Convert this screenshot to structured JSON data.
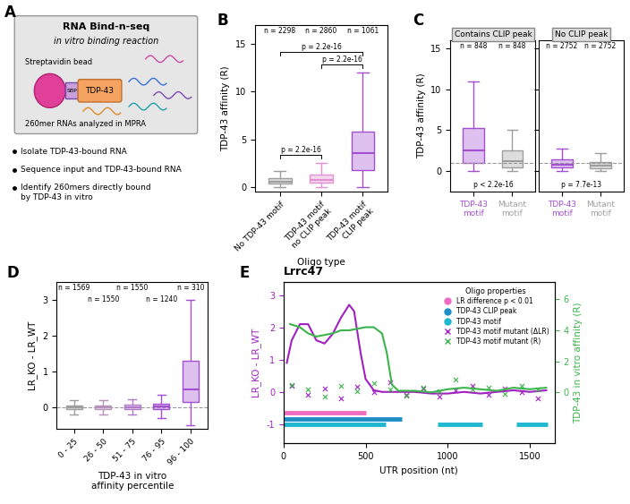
{
  "diagram": {
    "panel_label": "A",
    "title": "RNA Bind-n-seq",
    "subtitle": "in vitro binding reaction",
    "labels": {
      "bead": "Streptavidin bead",
      "tag": "SBP",
      "protein": "TDP-43",
      "rnas": "260mer RNAs analyzed in MPRA"
    },
    "steps": [
      "Isolate TDP-43-bound RNA",
      "Sequence input and TDP-43-bound RNA",
      "Identify 260mers directly bound\nby TDP-43 in vitro"
    ]
  },
  "chart_data": [
    {
      "panel_label": "B",
      "type": "box",
      "x_label": "Oligo type",
      "y_label": "TDP-43 affinity (R)",
      "categories": [
        "No TDP-43 motif",
        "TDP-43 motif\nno CLIP peak",
        "TDP-43 motif\nCLIP peak"
      ],
      "boxes": [
        {
          "q1": 0.3,
          "median": 0.5,
          "q3": 0.9,
          "whislo": 0,
          "whishi": 1.7
        },
        {
          "q1": 0.45,
          "median": 0.75,
          "q3": 1.3,
          "whislo": 0,
          "whishi": 2.5
        },
        {
          "q1": 1.8,
          "median": 3.5,
          "q3": 5.8,
          "whislo": 0,
          "whishi": 12
        }
      ],
      "colors": [
        "#9e9e9e",
        "#e58fd0",
        "#a34fd1"
      ],
      "n_labels": [
        "n = 2298",
        "n = 2860",
        "n = 1061"
      ],
      "comparisons": [
        {
          "groups": [
            0,
            1
          ],
          "label": "p = 2.2e-16"
        },
        {
          "groups": [
            1,
            2
          ],
          "label": "p = 2.2e-16"
        },
        {
          "groups": [
            0,
            2
          ],
          "label": "p = 2.2e-16"
        }
      ],
      "ylim": [
        -0.5,
        17
      ],
      "yticks": [
        0,
        5,
        10,
        15
      ]
    },
    {
      "panel_label": "C",
      "type": "paired_box",
      "y_label": "TDP-43 affinity (R)",
      "colors": [
        "#a34fd1",
        "#9e9e9e"
      ],
      "reference_line": 1,
      "facets": [
        {
          "title": "Contains CLIP peak",
          "categories": [
            "TDP-43\nmotif",
            "Mutant\nmotif"
          ],
          "boxes": [
            {
              "q1": 1.0,
              "median": 2.5,
              "q3": 5.3,
              "whislo": 0,
              "whishi": 11
            },
            {
              "q1": 0.5,
              "median": 1.2,
              "q3": 2.5,
              "whislo": 0,
              "whishi": 5
            }
          ],
          "n_labels": [
            "n = 848",
            "n = 848"
          ],
          "p_label": "p < 2.2e-16"
        },
        {
          "title": "No CLIP peak",
          "categories": [
            "TDP-43\nmotif",
            "Mutant\nmotif"
          ],
          "boxes": [
            {
              "q1": 0.4,
              "median": 0.8,
              "q3": 1.4,
              "whislo": 0,
              "whishi": 2.8
            },
            {
              "q1": 0.35,
              "median": 0.65,
              "q3": 1.1,
              "whislo": 0,
              "whishi": 2.2
            }
          ],
          "n_labels": [
            "n = 2752",
            "n = 2752"
          ],
          "p_label": "p = 7.7e-13"
        }
      ],
      "ylim": [
        -2.5,
        16
      ],
      "yticks": [
        0,
        5,
        10,
        15
      ]
    },
    {
      "panel_label": "D",
      "type": "box",
      "x_label": "TDP-43 in vitro\naffinity percentile",
      "y_label": "LR_KO - LR_WT",
      "categories": [
        "0 - 25",
        "26 - 50",
        "51 - 75",
        "76 - 95",
        "96 - 100"
      ],
      "boxes": [
        {
          "q1": -0.05,
          "median": 0,
          "q3": 0.05,
          "whislo": -0.2,
          "whishi": 0.2
        },
        {
          "q1": -0.05,
          "median": 0,
          "q3": 0.05,
          "whislo": -0.2,
          "whishi": 0.2
        },
        {
          "q1": -0.05,
          "median": 0,
          "q3": 0.06,
          "whislo": -0.2,
          "whishi": 0.22
        },
        {
          "q1": -0.05,
          "median": 0.02,
          "q3": 0.1,
          "whislo": -0.3,
          "whishi": 0.35
        },
        {
          "q1": 0.15,
          "median": 0.5,
          "q3": 1.3,
          "whislo": -0.5,
          "whishi": 3
        }
      ],
      "colors": [
        "#9e9e9e",
        "#b892b8",
        "#b07ac8",
        "#a34fd1",
        "#a34fd1"
      ],
      "n_labels": [
        "n = 1569",
        "n = 1550",
        "n = 1550",
        "n = 1240",
        "n = 310"
      ],
      "reference_line": 0,
      "ylim": [
        -0.6,
        3.5
      ],
      "yticks": [
        0,
        1,
        2,
        3
      ]
    },
    {
      "panel_label": "E",
      "type": "line",
      "title": "Lrrc47",
      "x_label": "UTR position (nt)",
      "y_label": "LR_KO - LR_WT",
      "y2_label": "TDP-43 in vitro affinity (R)",
      "xlim": [
        0,
        1650
      ],
      "xticks": [
        0,
        500,
        1000,
        1500
      ],
      "ylim": [
        -1.6,
        3.4
      ],
      "yticks": [
        -1,
        0,
        1,
        2,
        3
      ],
      "y2lim": [
        -3.3,
        7.1
      ],
      "y2ticks": [
        0,
        2,
        4,
        6
      ],
      "legend_title": "Oligo properties",
      "legend": "upper right",
      "series": [
        {
          "type": "line",
          "color": "#a020c0",
          "x": [
            20,
            50,
            100,
            150,
            200,
            250,
            300,
            350,
            400,
            430,
            470,
            500,
            550,
            600,
            700,
            800,
            900,
            1000,
            1100,
            1200,
            1300,
            1400,
            1500,
            1600
          ],
          "values": [
            0.9,
            1.6,
            2.1,
            2.1,
            1.6,
            1.5,
            1.8,
            2.3,
            2.7,
            2.5,
            1.2,
            0.4,
            0.05,
            0,
            0,
            0,
            -0.05,
            -0.05,
            0,
            -0.05,
            0,
            0.05,
            0,
            0.05
          ]
        },
        {
          "type": "line",
          "axis": "y2",
          "color": "#3cb44b",
          "x": [
            40,
            100,
            150,
            200,
            250,
            300,
            350,
            400,
            450,
            500,
            550,
            600,
            630,
            660,
            700,
            800,
            900,
            1000,
            1100,
            1200,
            1300,
            1400,
            1500,
            1600
          ],
          "values": [
            4.4,
            4.2,
            3.8,
            3.6,
            3.7,
            3.8,
            4.0,
            4.0,
            4.1,
            4.2,
            4.2,
            3.8,
            2.5,
            0.5,
            0.1,
            0.1,
            0.0,
            0.2,
            0.3,
            0.2,
            0.1,
            0.3,
            0.2,
            0.3
          ]
        },
        {
          "type": "scatter",
          "name": "TDP-43 motif mutant (ΔLR)",
          "color": "#a020c0",
          "marker": "x",
          "x": [
            50,
            150,
            250,
            350,
            450,
            550,
            650,
            750,
            850,
            950,
            1050,
            1150,
            1250,
            1350,
            1450,
            1550
          ],
          "values": [
            0.2,
            -0.1,
            0.1,
            -0.2,
            0.15,
            0,
            0.3,
            -0.1,
            0.1,
            -0.15,
            0.05,
            0.2,
            -0.1,
            0.1,
            0,
            -0.2
          ]
        },
        {
          "type": "scatter",
          "name": "TDP-43 motif mutant (R)",
          "axis": "y2",
          "color": "#3cb44b",
          "marker": "x",
          "x": [
            50,
            150,
            250,
            350,
            450,
            550,
            650,
            750,
            850,
            950,
            1050,
            1150,
            1250,
            1350,
            1450,
            1550
          ],
          "values": [
            0.5,
            0.2,
            -0.3,
            0.4,
            0.1,
            0.6,
            0.2,
            -0.2,
            0.3,
            0.1,
            0.8,
            0.2,
            0.3,
            -0.1,
            0.4,
            0.2
          ]
        }
      ],
      "tracks": [
        {
          "name": "LR difference p < 0.01",
          "color": "#f06cc0",
          "segments": [
            [
              0,
              500
            ]
          ]
        },
        {
          "name": "TDP-43 CLIP peak",
          "color": "#1f8fc8",
          "segments": [
            [
              0,
              720
            ]
          ]
        },
        {
          "name": "TDP-43 motif",
          "color": "#20b8d0",
          "segments": [
            [
              0,
              620
            ],
            [
              940,
              1210
            ],
            [
              1420,
              1610
            ]
          ]
        }
      ]
    }
  ]
}
